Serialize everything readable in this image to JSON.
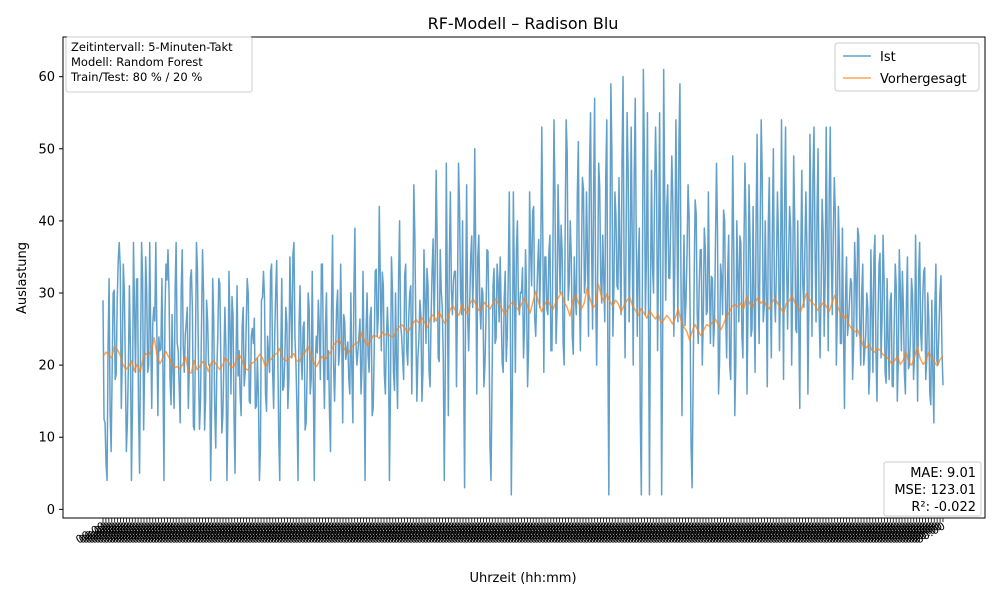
{
  "chart_data": {
    "type": "line",
    "title": "RF-Modell – Radison Blu",
    "xlabel": "Uhrzeit (hh:mm)",
    "ylabel": "Auslastung",
    "ylim": [
      -1.2,
      65.5
    ],
    "yticks": [
      0,
      10,
      20,
      30,
      40,
      50,
      60
    ],
    "x_tick_count": 288,
    "x_tick_label_placeholder": "00:00",
    "grid": false,
    "legend": {
      "placement": "top-right",
      "entries": [
        "Ist",
        "Vorhergesagt"
      ]
    },
    "info_box": [
      "Zeitintervall: 5-Minuten-Takt",
      "Modell: Random Forest",
      "Train/Test: 80 % / 20 %"
    ],
    "metrics_box": [
      "MAE: 9.01",
      "MSE: 123.01",
      "R²: -0.022"
    ],
    "colors": {
      "ist": "#1f77b4",
      "vorhergesagt": "#ff7f0e"
    },
    "series": [
      {
        "name": "Ist",
        "n_points": 864,
        "values_sampled_every_2": [
          29,
          12,
          4,
          32,
          8,
          30,
          18,
          29,
          37,
          14,
          34,
          20,
          12,
          31,
          4,
          37,
          19,
          32,
          5,
          37,
          11,
          35,
          19,
          37,
          14,
          28,
          37,
          13,
          22,
          32,
          4,
          34,
          36,
          18,
          27,
          14,
          37,
          22,
          12,
          36,
          19,
          26,
          14,
          32,
          28,
          11,
          37,
          20,
          15,
          36,
          11,
          29,
          20,
          4,
          32,
          14,
          19,
          32,
          21,
          13,
          28,
          4,
          33,
          16,
          27,
          5,
          31,
          22,
          13,
          28,
          19,
          32,
          15,
          24,
          23,
          14,
          21,
          4,
          29,
          33,
          16,
          24,
          19,
          34,
          14,
          30,
          23,
          4,
          32,
          17,
          28,
          14,
          35,
          21,
          37,
          20,
          4,
          31,
          18,
          26,
          12,
          30,
          16,
          33,
          4,
          24,
          29,
          18,
          34,
          14,
          30,
          22,
          8,
          38,
          15,
          28,
          20,
          34,
          12,
          26,
          22,
          18,
          30,
          12,
          39,
          20,
          24,
          16,
          33,
          4,
          30,
          19,
          28,
          14,
          33,
          24,
          42,
          22,
          31,
          16,
          28,
          4,
          35,
          19,
          30,
          14,
          40,
          24,
          18,
          34,
          20,
          30,
          16,
          45,
          25,
          21,
          29,
          15,
          36,
          23,
          31,
          17,
          33,
          26,
          47,
          21,
          36,
          28,
          4,
          48,
          13,
          44,
          27,
          33,
          17,
          48,
          30,
          40,
          3,
          45,
          22,
          35,
          28,
          50,
          16,
          38,
          25,
          30,
          20,
          36,
          26,
          4,
          31,
          23,
          34,
          26,
          28,
          19,
          33,
          24,
          44,
          2,
          44,
          19,
          40,
          27,
          30,
          21,
          36,
          17,
          44,
          31,
          42,
          24,
          34,
          28,
          53,
          19,
          35,
          27,
          38,
          22,
          54,
          23,
          45,
          30,
          36,
          20,
          54,
          29,
          40,
          24,
          35,
          27,
          51,
          22,
          46,
          30,
          44,
          24,
          55,
          25,
          57,
          20,
          48,
          32,
          38,
          26,
          54,
          2,
          59,
          24,
          44,
          31,
          46,
          27,
          60,
          21,
          55,
          26,
          53,
          20,
          57,
          24,
          39,
          2,
          61,
          27,
          55,
          2,
          47,
          30,
          53,
          22,
          55,
          2,
          61,
          29,
          45,
          32,
          49,
          24,
          54,
          26,
          59,
          13,
          38,
          29,
          45,
          27,
          3,
          32,
          41,
          23,
          36,
          20,
          39,
          27,
          44,
          23,
          32,
          26,
          48,
          16,
          34,
          27,
          40,
          21,
          38,
          18,
          49,
          13,
          40,
          26,
          37,
          21,
          48,
          16,
          45,
          24,
          42,
          19,
          52,
          23,
          54,
          26,
          40,
          17,
          46,
          21,
          50,
          26,
          44,
          22,
          54,
          18,
          53,
          25,
          42,
          20,
          49,
          25,
          40,
          14,
          47,
          28,
          44,
          16,
          52,
          24,
          53,
          26,
          50,
          21,
          43,
          24,
          53,
          22,
          53,
          27,
          46,
          20,
          42,
          23,
          39,
          14,
          35,
          26,
          32,
          18,
          37,
          24,
          38,
          20,
          34,
          22,
          30,
          16,
          36,
          19,
          38,
          15,
          34,
          21,
          38,
          19,
          32,
          18,
          30,
          17,
          34,
          15,
          36,
          22,
          28,
          16,
          35,
          20,
          32,
          18,
          38,
          15,
          37,
          22,
          33,
          18,
          30,
          16,
          29,
          12,
          34,
          20,
          30,
          22
        ],
        "note": "values_sampled_every_2 lists every second point of the Ist series (432 of 864 points); intermediate points are rendered as interpolated dips/peaks by the drawing script"
      },
      {
        "name": "Vorhergesagt",
        "n_points": 288,
        "values": [
          21.2,
          21.8,
          21.4,
          21.0,
          22.6,
          22.2,
          21.4,
          20.1,
          19.4,
          19.8,
          20.6,
          19.2,
          20.1,
          19.0,
          20.8,
          21.6,
          21.4,
          22.0,
          23.8,
          21.3,
          20.2,
          21.0,
          21.9,
          21.2,
          20.4,
          19.6,
          19.8,
          19.5,
          20.1,
          21.2,
          19.1,
          18.9,
          20.6,
          19.4,
          19.8,
          20.5,
          20.2,
          19.1,
          20.3,
          20.6,
          19.9,
          19.4,
          20.0,
          21.0,
          20.5,
          19.6,
          19.8,
          20.9,
          21.4,
          20.6,
          19.5,
          19.3,
          20.2,
          20.4,
          20.9,
          21.5,
          21.0,
          19.8,
          20.6,
          20.8,
          21.4,
          21.6,
          22.3,
          21.1,
          20.6,
          20.8,
          21.2,
          21.6,
          20.6,
          20.5,
          21.4,
          21.8,
          22.6,
          21.5,
          20.3,
          19.8,
          20.6,
          21.2,
          20.8,
          21.3,
          21.9,
          22.8,
          23.2,
          23.6,
          22.7,
          22.1,
          21.6,
          22.3,
          22.8,
          23.0,
          23.4,
          24.6,
          23.2,
          22.7,
          23.4,
          24.1,
          24.0,
          23.7,
          24.6,
          24.2,
          24.4,
          24.0,
          23.9,
          24.8,
          25.3,
          25.6,
          25.1,
          24.5,
          25.2,
          25.9,
          26.3,
          25.8,
          26.5,
          25.9,
          25.2,
          26.6,
          27.0,
          26.1,
          27.4,
          26.6,
          25.8,
          26.4,
          27.8,
          28.2,
          27.3,
          26.9,
          28.4,
          27.6,
          27.2,
          28.6,
          29.2,
          28.4,
          27.6,
          27.8,
          28.7,
          28.2,
          27.8,
          28.6,
          29.2,
          28.4,
          27.9,
          27.1,
          27.6,
          28.4,
          28.8,
          28.1,
          27.6,
          28.5,
          29.3,
          28.4,
          27.2,
          28.8,
          30.2,
          28.7,
          27.4,
          28.3,
          29.0,
          28.4,
          27.7,
          28.7,
          29.4,
          30.1,
          28.7,
          28.0,
          26.8,
          28.9,
          29.7,
          28.6,
          27.8,
          28.6,
          30.7,
          29.3,
          27.9,
          28.4,
          31.2,
          29.6,
          28.8,
          29.9,
          28.9,
          28.2,
          29.0,
          28.5,
          27.4,
          28.3,
          29.0,
          29.4,
          28.2,
          27.6,
          26.9,
          27.8,
          27.2,
          26.5,
          27.6,
          26.9,
          26.4,
          27.1,
          25.8,
          26.3,
          26.9,
          26.4,
          25.7,
          26.6,
          27.8,
          26.2,
          25.3,
          24.7,
          23.5,
          24.8,
          25.6,
          24.7,
          24.1,
          24.9,
          25.6,
          25.4,
          25.9,
          26.4,
          25.7,
          24.9,
          25.8,
          26.8,
          27.4,
          28.2,
          28.4,
          28.1,
          28.6,
          27.8,
          29.5,
          28.6,
          28.0,
          28.7,
          29.3,
          28.6,
          28.9,
          28.2,
          27.8,
          28.7,
          29.3,
          28.5,
          27.9,
          27.2,
          28.6,
          28.9,
          29.7,
          28.6,
          28.1,
          27.4,
          28.6,
          29.9,
          29.2,
          28.7,
          28.3,
          27.6,
          28.1,
          28.7,
          28.2,
          27.4,
          28.6,
          29.7,
          28.1,
          27.2,
          26.5,
          26.9,
          25.6,
          25.0,
          24.6,
          24.9,
          23.8,
          22.6,
          22.4,
          22.9,
          22.1,
          21.8,
          22.3,
          22.0,
          21.4,
          21.2,
          20.8,
          20.2,
          20.6,
          21.3,
          20.1,
          20.7,
          21.8,
          20.4,
          20.0,
          21.2,
          22.4,
          20.9,
          20.1,
          20.6,
          21.8,
          21.0,
          20.4,
          19.9,
          20.8,
          21.3
        ]
      }
    ]
  }
}
